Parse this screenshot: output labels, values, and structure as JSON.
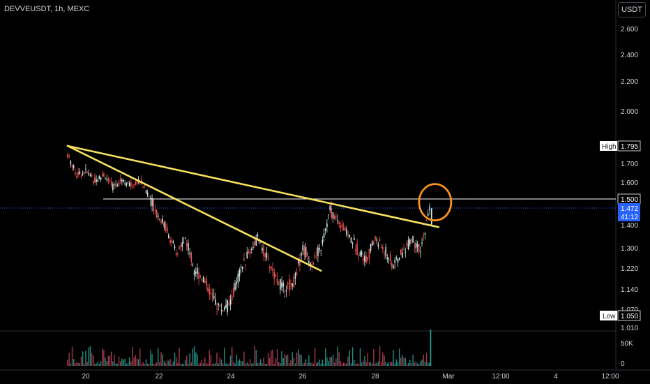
{
  "header": {
    "symbol": "DEVVEUSDT, 1h, MEXC",
    "currency_button": "USDT"
  },
  "colors": {
    "up": "#cfeae6",
    "up_volume": "#26a69a",
    "down": "#ef5350",
    "down_volume": "#c2455a",
    "trendline": "#f6e05e",
    "circle": "#f7931a",
    "price_line": "#2962ff",
    "resistance": "#ffffff"
  },
  "chart_data": {
    "type": "candlestick",
    "symbol": "DEVVEUSDT",
    "interval": "1h",
    "exchange": "MEXC",
    "y_ticks": [
      "2.600",
      "2.400",
      "2.200",
      "2.000",
      "1.700",
      "1.600",
      "1.400",
      "1.300",
      "1.220",
      "1.140",
      "1.070",
      "1.010"
    ],
    "x_ticks": [
      "20",
      "22",
      "24",
      "26",
      "28",
      "Mar",
      "12:00",
      "4",
      "12:00"
    ],
    "volume_ticks": [
      "50K",
      "0"
    ],
    "high": {
      "label": "High",
      "value": "1.795"
    },
    "low": {
      "label": "Low",
      "value": "1.050"
    },
    "resistance_level": "1.500",
    "last_price": "1.472",
    "countdown": "41:12",
    "price_path": [
      [
        "2024-02-19T12:00",
        1.75
      ],
      [
        "2024-02-19T18:00",
        1.64
      ],
      [
        "2024-02-20T00:00",
        1.66
      ],
      [
        "2024-02-20T06:00",
        1.61
      ],
      [
        "2024-02-20T12:00",
        1.64
      ],
      [
        "2024-02-20T18:00",
        1.57
      ],
      [
        "2024-02-21T00:00",
        1.62
      ],
      [
        "2024-02-21T06:00",
        1.58
      ],
      [
        "2024-02-21T12:00",
        1.61
      ],
      [
        "2024-02-21T18:00",
        1.52
      ],
      [
        "2024-02-22T00:00",
        1.44
      ],
      [
        "2024-02-22T06:00",
        1.38
      ],
      [
        "2024-02-22T12:00",
        1.27
      ],
      [
        "2024-02-22T18:00",
        1.34
      ],
      [
        "2024-02-23T00:00",
        1.22
      ],
      [
        "2024-02-23T06:00",
        1.18
      ],
      [
        "2024-02-23T12:00",
        1.11
      ],
      [
        "2024-02-23T18:00",
        1.07
      ],
      [
        "2024-02-24T00:00",
        1.09
      ],
      [
        "2024-02-24T06:00",
        1.2
      ],
      [
        "2024-02-24T12:00",
        1.28
      ],
      [
        "2024-02-24T18:00",
        1.34
      ],
      [
        "2024-02-25T00:00",
        1.26
      ],
      [
        "2024-02-25T06:00",
        1.18
      ],
      [
        "2024-02-25T12:00",
        1.14
      ],
      [
        "2024-02-25T18:00",
        1.17
      ],
      [
        "2024-02-26T00:00",
        1.3
      ],
      [
        "2024-02-26T06:00",
        1.24
      ],
      [
        "2024-02-26T12:00",
        1.3
      ],
      [
        "2024-02-26T18:00",
        1.46
      ],
      [
        "2024-02-27T00:00",
        1.41
      ],
      [
        "2024-02-27T06:00",
        1.36
      ],
      [
        "2024-02-27T12:00",
        1.3
      ],
      [
        "2024-02-27T18:00",
        1.25
      ],
      [
        "2024-02-28T00:00",
        1.34
      ],
      [
        "2024-02-28T06:00",
        1.29
      ],
      [
        "2024-02-28T12:00",
        1.23
      ],
      [
        "2024-02-28T18:00",
        1.28
      ],
      [
        "2024-02-29T00:00",
        1.34
      ],
      [
        "2024-02-29T06:00",
        1.28
      ],
      [
        "2024-02-29T12:00",
        1.47
      ]
    ],
    "trendlines": [
      {
        "from": [
          "2024-02-19T12:00",
          1.795
        ],
        "to": [
          "2024-02-29T18:00",
          1.39
        ]
      },
      {
        "from": [
          "2024-02-19T12:00",
          1.795
        ],
        "to": [
          "2024-02-26T12:00",
          1.21
        ]
      }
    ],
    "highlight_circle": {
      "at": [
        "2024-02-29T12:00",
        1.49
      ]
    },
    "volume_spike": {
      "at": "2024-02-29T12:00",
      "relative": 1.0
    }
  }
}
